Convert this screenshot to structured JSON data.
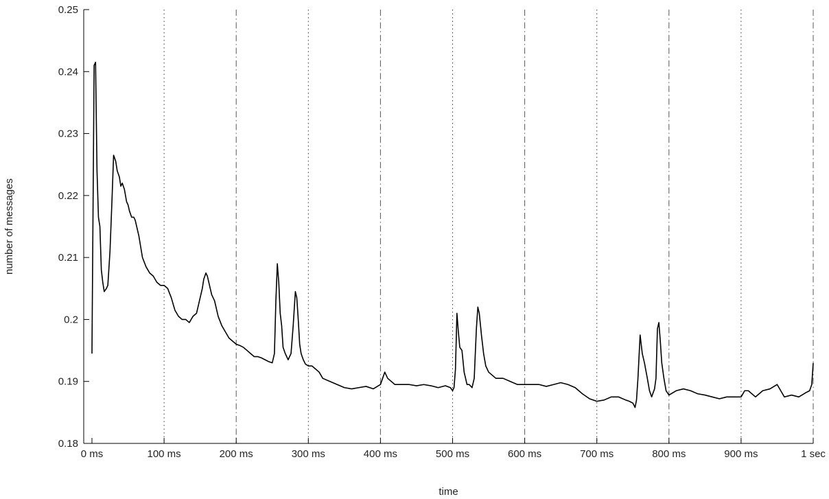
{
  "chart_data": {
    "type": "line",
    "xlabel": "time",
    "ylabel": "number of messages",
    "xlim": [
      0,
      1000
    ],
    "ylim": [
      0.18,
      0.25
    ],
    "x_ticks": [
      0,
      100,
      200,
      300,
      400,
      500,
      600,
      700,
      800,
      900,
      1000
    ],
    "x_tick_labels": [
      "0 ms",
      "100 ms",
      "200 ms",
      "300 ms",
      "400 ms",
      "500 ms",
      "600 ms",
      "700 ms",
      "800 ms",
      "900 ms",
      "1 sec"
    ],
    "y_ticks": [
      0.18,
      0.19,
      0.2,
      0.21,
      0.22,
      0.23,
      0.24,
      0.25
    ],
    "y_tick_labels": [
      "0.18",
      "0.19",
      "0.2",
      "0.21",
      "0.22",
      "0.23",
      "0.24",
      "0.25"
    ],
    "gridlines": [
      {
        "x": 100,
        "style": "dotted"
      },
      {
        "x": 200,
        "style": "dashdot"
      },
      {
        "x": 300,
        "style": "dotted"
      },
      {
        "x": 400,
        "style": "dashdot"
      },
      {
        "x": 500,
        "style": "dotted"
      },
      {
        "x": 600,
        "style": "dashdot"
      },
      {
        "x": 700,
        "style": "dotted"
      },
      {
        "x": 800,
        "style": "dashdot"
      },
      {
        "x": 900,
        "style": "dotted"
      },
      {
        "x": 1000,
        "style": "dashdot"
      }
    ],
    "series": [
      {
        "color": "#000000",
        "x": [
          0,
          3,
          5,
          7,
          9,
          11,
          13,
          15,
          17,
          20,
          22,
          25,
          28,
          30,
          33,
          35,
          38,
          40,
          42,
          45,
          48,
          50,
          52,
          55,
          58,
          60,
          65,
          70,
          75,
          80,
          85,
          90,
          95,
          100,
          105,
          110,
          115,
          120,
          125,
          130,
          135,
          140,
          145,
          150,
          153,
          155,
          158,
          160,
          163,
          166,
          170,
          175,
          180,
          185,
          190,
          195,
          200,
          205,
          210,
          215,
          220,
          225,
          230,
          235,
          240,
          245,
          250,
          253,
          255,
          257,
          259,
          261,
          263,
          265,
          268,
          272,
          276,
          279,
          282,
          284,
          286,
          288,
          290,
          293,
          296,
          300,
          305,
          310,
          315,
          320,
          330,
          340,
          350,
          360,
          370,
          380,
          390,
          400,
          403,
          406,
          410,
          420,
          430,
          440,
          450,
          460,
          470,
          480,
          490,
          497,
          500,
          502,
          504,
          506,
          508,
          510,
          513,
          516,
          520,
          523,
          527,
          530,
          533,
          535,
          537,
          540,
          543,
          546,
          550,
          555,
          560,
          570,
          580,
          590,
          600,
          610,
          620,
          630,
          640,
          650,
          660,
          670,
          680,
          690,
          700,
          710,
          720,
          730,
          740,
          745,
          750,
          753,
          755,
          757,
          760,
          763,
          766,
          770,
          773,
          776,
          780,
          782,
          784,
          786,
          788,
          790,
          793,
          796,
          800,
          810,
          820,
          830,
          840,
          850,
          860,
          870,
          880,
          890,
          900,
          905,
          910,
          920,
          930,
          940,
          950,
          960,
          970,
          980,
          990,
          995,
          998,
          1000
        ],
        "values": [
          0.1945,
          0.241,
          0.2415,
          0.224,
          0.2165,
          0.215,
          0.208,
          0.206,
          0.2045,
          0.205,
          0.2055,
          0.211,
          0.22,
          0.2265,
          0.2255,
          0.224,
          0.223,
          0.2215,
          0.222,
          0.221,
          0.219,
          0.2185,
          0.2175,
          0.2165,
          0.2165,
          0.216,
          0.2135,
          0.21,
          0.2085,
          0.2075,
          0.207,
          0.206,
          0.2055,
          0.2055,
          0.205,
          0.2035,
          0.2015,
          0.2005,
          0.2,
          0.2,
          0.1995,
          0.2005,
          0.201,
          0.2035,
          0.205,
          0.2065,
          0.2075,
          0.207,
          0.2055,
          0.204,
          0.203,
          0.2005,
          0.199,
          0.198,
          0.197,
          0.1965,
          0.196,
          0.1958,
          0.1955,
          0.195,
          0.1945,
          0.194,
          0.194,
          0.1938,
          0.1935,
          0.1932,
          0.193,
          0.1945,
          0.203,
          0.209,
          0.206,
          0.201,
          0.199,
          0.1955,
          0.1945,
          0.1935,
          0.1945,
          0.199,
          0.2045,
          0.2035,
          0.2,
          0.196,
          0.1945,
          0.1935,
          0.1928,
          0.1925,
          0.1925,
          0.192,
          0.1915,
          0.1905,
          0.19,
          0.1895,
          0.189,
          0.1888,
          0.189,
          0.1892,
          0.1888,
          0.1895,
          0.1905,
          0.1915,
          0.1905,
          0.1895,
          0.1895,
          0.1895,
          0.1893,
          0.1895,
          0.1893,
          0.189,
          0.1893,
          0.189,
          0.1885,
          0.189,
          0.192,
          0.201,
          0.198,
          0.1955,
          0.195,
          0.1915,
          0.1895,
          0.1895,
          0.189,
          0.1905,
          0.1985,
          0.202,
          0.201,
          0.1975,
          0.1945,
          0.1925,
          0.1915,
          0.191,
          0.1905,
          0.1905,
          0.19,
          0.1895,
          0.1895,
          0.1895,
          0.1895,
          0.1892,
          0.1895,
          0.1898,
          0.1895,
          0.189,
          0.188,
          0.1872,
          0.1868,
          0.187,
          0.1875,
          0.1875,
          0.187,
          0.1868,
          0.1865,
          0.1858,
          0.187,
          0.1905,
          0.1975,
          0.1945,
          0.193,
          0.1905,
          0.1885,
          0.1875,
          0.1888,
          0.1905,
          0.1985,
          0.1995,
          0.1965,
          0.193,
          0.1905,
          0.1885,
          0.1878,
          0.1885,
          0.1888,
          0.1885,
          0.188,
          0.1878,
          0.1875,
          0.1872,
          0.1875,
          0.1875,
          0.1875,
          0.1885,
          0.1885,
          0.1875,
          0.1885,
          0.1888,
          0.1895,
          0.1875,
          0.1878,
          0.1875,
          0.1882,
          0.1885,
          0.1895,
          0.193
        ]
      }
    ]
  }
}
